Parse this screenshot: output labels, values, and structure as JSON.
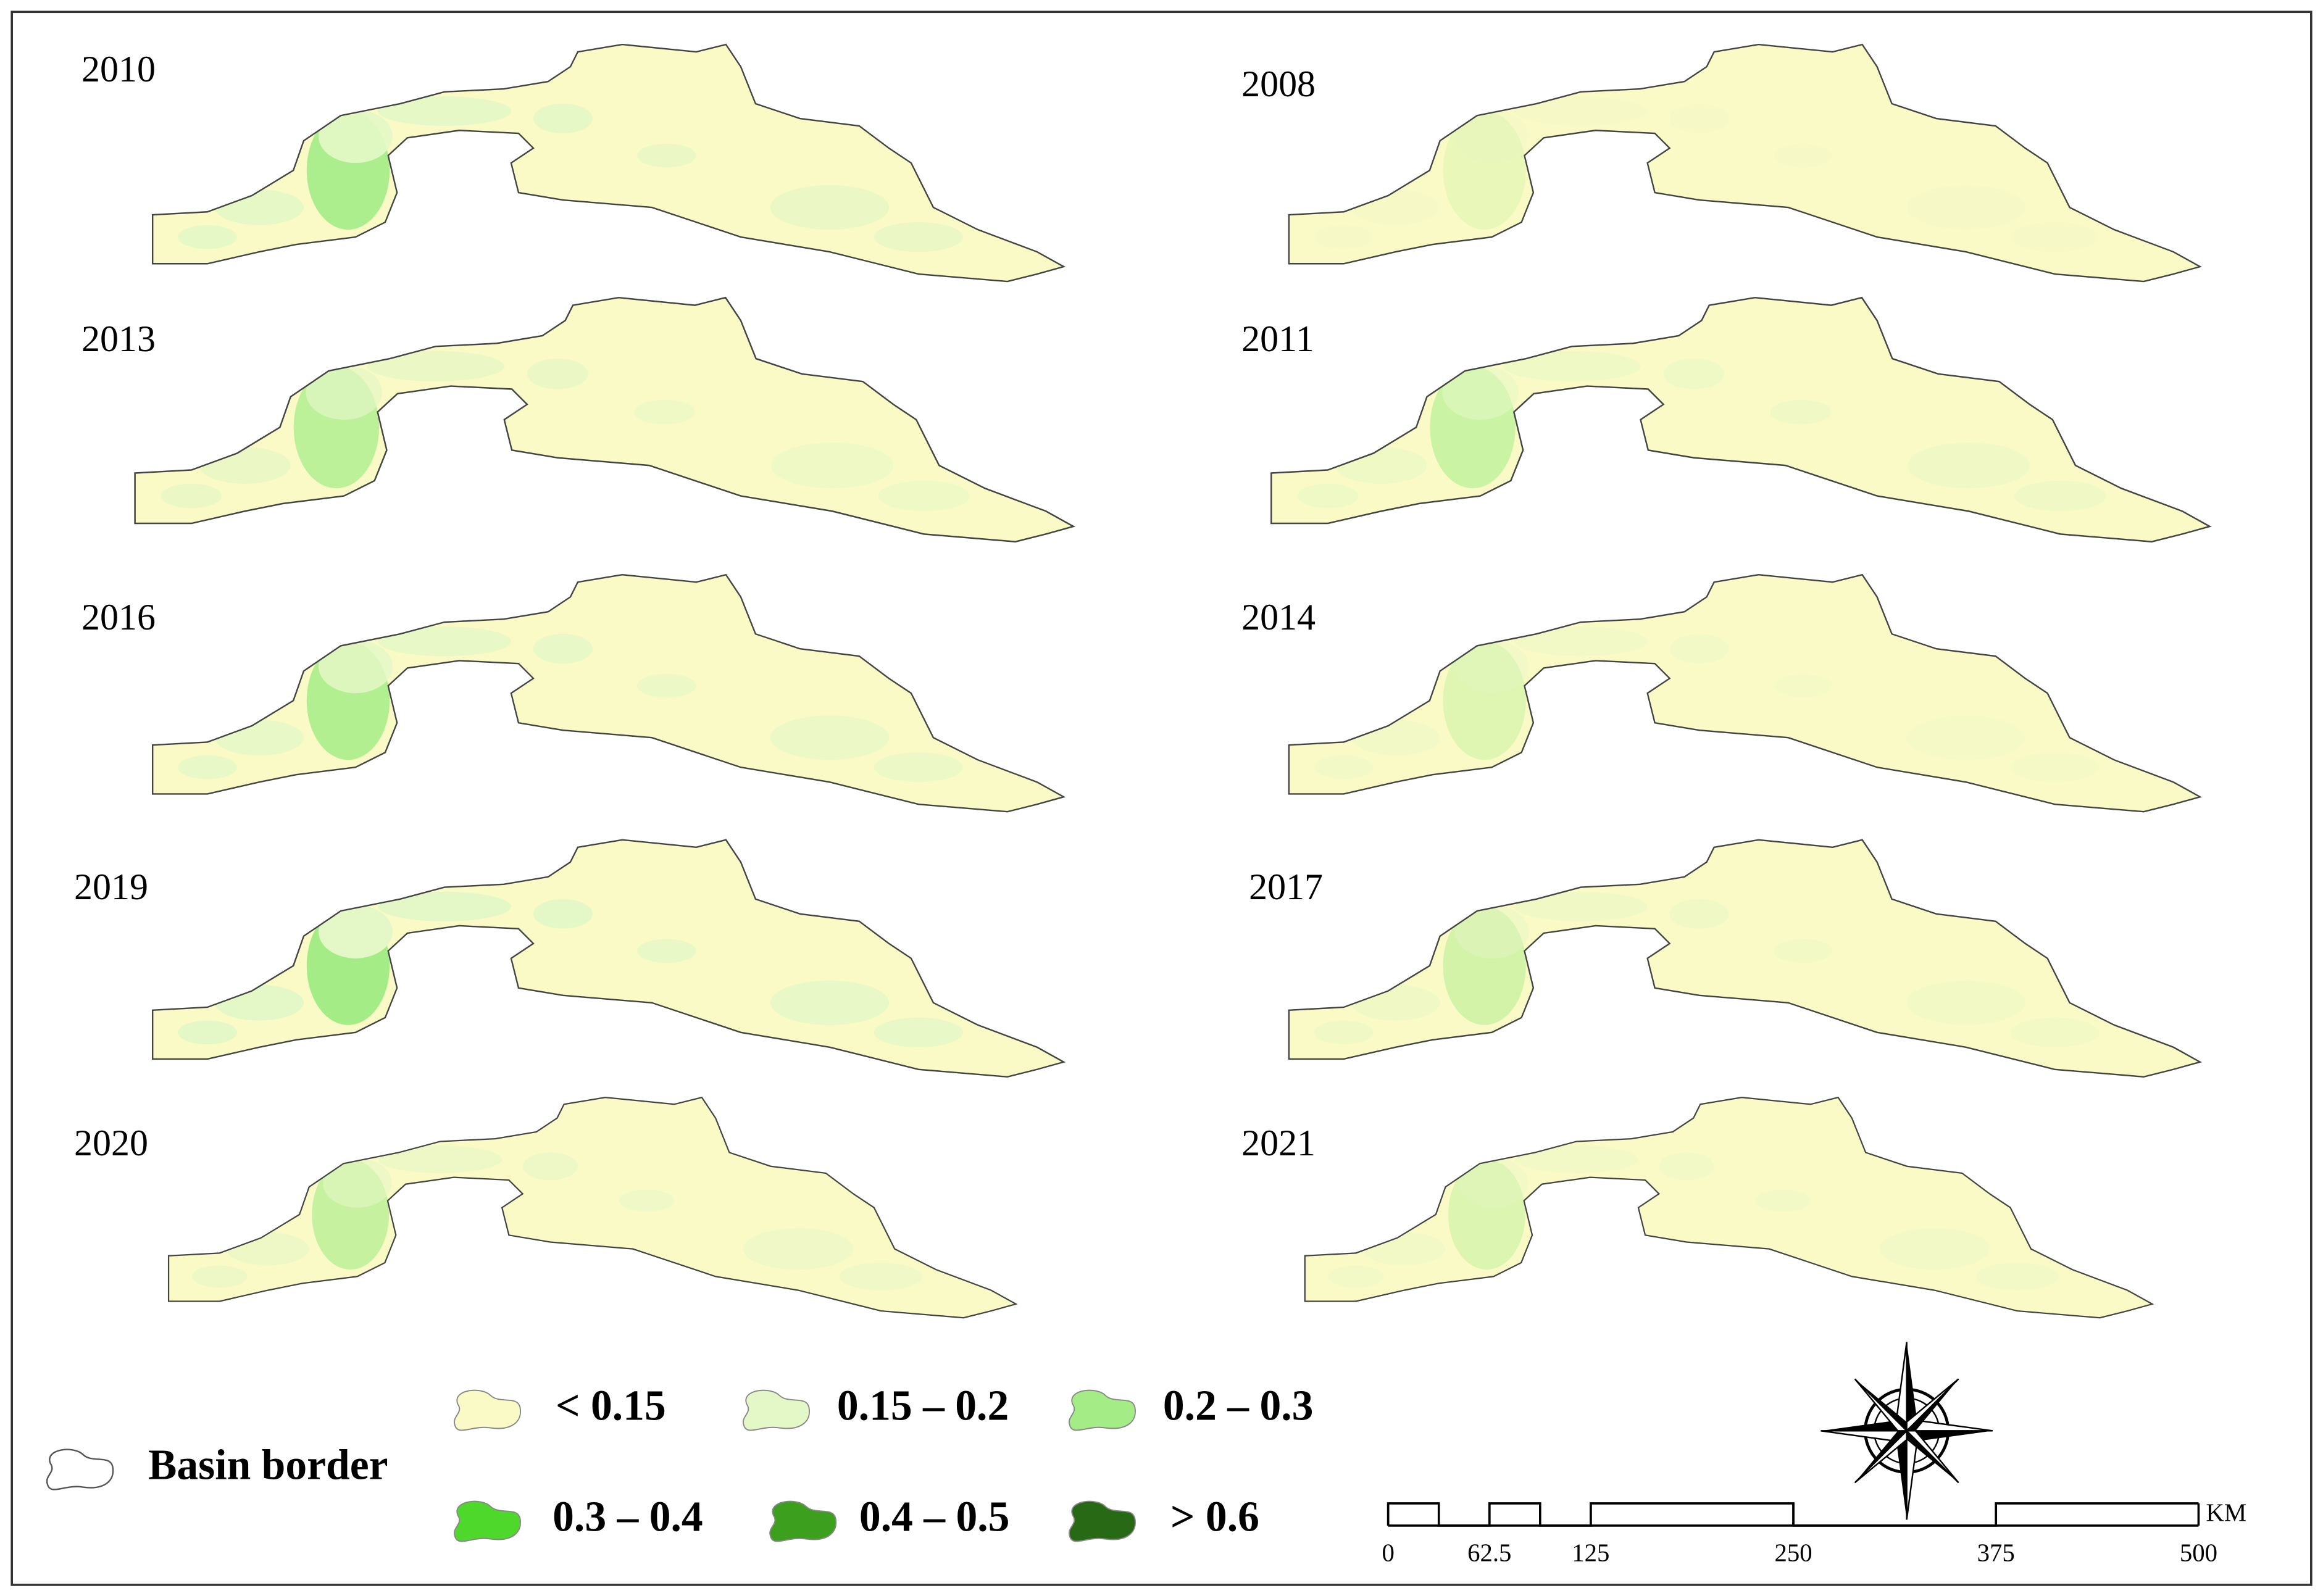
{
  "panels": [
    "2010",
    "2008",
    "2013",
    "2011",
    "2016",
    "2014",
    "2019",
    "2017",
    "2020",
    "2021"
  ],
  "legend": {
    "border_label": "Basin border",
    "items": [
      {
        "label": "< 0.15",
        "color": "#fafac6"
      },
      {
        "label": "0.15 – 0.2",
        "color": "#e4f7c6"
      },
      {
        "label": "0.2 – 0.3",
        "color": "#a3ec86"
      },
      {
        "label": "0.3 – 0.4",
        "color": "#4fd82c"
      },
      {
        "label": "0.4 – 0.5",
        "color": "#3c9f1d"
      },
      {
        "label": "> 0.6",
        "color": "#286915"
      }
    ]
  },
  "scale_bar": {
    "ticks": [
      0,
      62.5,
      125,
      250,
      375,
      500
    ],
    "unit": "KM"
  }
}
